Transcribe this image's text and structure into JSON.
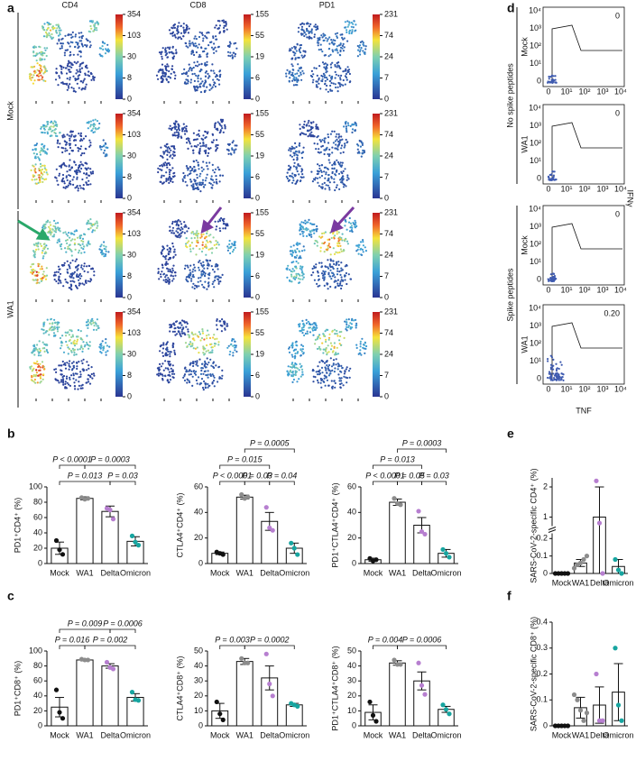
{
  "panels": {
    "a": "a",
    "b": "b",
    "c": "c",
    "d": "d",
    "e": "e",
    "f": "f"
  },
  "tsne": {
    "markers": [
      {
        "name": "CD4",
        "ticks": [
          354,
          103,
          30,
          8,
          0
        ]
      },
      {
        "name": "CD8",
        "ticks": [
          155,
          55,
          19,
          6,
          0
        ]
      },
      {
        "name": "PD1",
        "ticks": [
          231,
          74,
          24,
          7,
          0
        ]
      }
    ],
    "groups": [
      "Mock",
      "WA1"
    ]
  },
  "flow": {
    "groups": [
      "No spike peptides",
      "Spike peptides"
    ],
    "plots": [
      {
        "label": "Mock",
        "value": "0"
      },
      {
        "label": "WA1",
        "value": "0"
      },
      {
        "label": "Mock",
        "value": "0"
      },
      {
        "label": "WA1",
        "value": "0.20"
      }
    ],
    "ticks": [
      "0",
      "10¹",
      "10²",
      "10³",
      "10⁴"
    ],
    "ylabel": "IFNγ",
    "xlabel": "TNF"
  },
  "point_colors": [
    "#111111",
    "#8c8c8c",
    "#b77fd0",
    "#17a5a0"
  ],
  "charts": [
    {
      "type": "bar",
      "ylabel": "PD1⁺CD4⁺ (%)",
      "categories": [
        "Mock",
        "WA1",
        "Delta",
        "Omicron"
      ],
      "values": [
        20,
        85,
        68,
        29
      ],
      "errors": [
        8,
        2,
        7,
        6
      ],
      "points": [
        [
          30,
          18,
          12
        ],
        [
          86,
          84,
          85
        ],
        [
          72,
          70,
          58
        ],
        [
          36,
          28,
          24
        ]
      ],
      "ylim": [
        0,
        100
      ],
      "yticks": [
        0,
        20,
        40,
        60,
        80,
        100
      ],
      "pvalues": [
        "P < 0.0001",
        "P = 0.0003",
        "P = 0.013",
        "P = 0.03"
      ]
    },
    {
      "type": "bar",
      "ylabel": "CTLA4⁺CD4⁺ (%)",
      "categories": [
        "Mock",
        "WA1",
        "Delta",
        "Omicron"
      ],
      "values": [
        8,
        52,
        33,
        12
      ],
      "errors": [
        1,
        1.5,
        7,
        4
      ],
      "points": [
        [
          9,
          8,
          7
        ],
        [
          54,
          51,
          52
        ],
        [
          44,
          28,
          26
        ],
        [
          16,
          12,
          7
        ]
      ],
      "ylim": [
        0,
        60
      ],
      "yticks": [
        0,
        20,
        40,
        60
      ],
      "pvalues": [
        "P = 0.0005",
        "P = 0.015",
        "P < 0.0001",
        "P = 0.03",
        "P = 0.04"
      ]
    },
    {
      "type": "bar",
      "ylabel": "PD1⁺CTLA4⁺CD4⁺ (%)",
      "categories": [
        "Mock",
        "WA1",
        "Delta",
        "Omicron"
      ],
      "values": [
        3,
        48,
        30,
        8
      ],
      "errors": [
        1.2,
        2.5,
        6,
        3
      ],
      "points": [
        [
          4,
          2,
          3
        ],
        [
          51,
          47,
          46
        ],
        [
          41,
          25,
          23
        ],
        [
          11,
          8,
          5
        ]
      ],
      "ylim": [
        0,
        60
      ],
      "yticks": [
        0,
        20,
        40,
        60
      ],
      "pvalues": [
        "P = 0.0003",
        "P = 0.013",
        "P < 0.0001",
        "P = 0.05",
        "P = 0.03"
      ]
    },
    {
      "type": "bar",
      "ylabel": "PD1⁺CD8⁺ (%)",
      "categories": [
        "Mock",
        "WA1",
        "Delta",
        "Omicron"
      ],
      "values": [
        25,
        88,
        80,
        38
      ],
      "errors": [
        13,
        1,
        3,
        5
      ],
      "points": [
        [
          48,
          18,
          10
        ],
        [
          89,
          88,
          88
        ],
        [
          85,
          78,
          76
        ],
        [
          45,
          35,
          34
        ]
      ],
      "ylim": [
        0,
        100
      ],
      "yticks": [
        0,
        20,
        40,
        60,
        80,
        100
      ],
      "pvalues": [
        "P = 0.009",
        "P = 0.0006",
        "P = 0.016",
        "P = 0.002"
      ]
    },
    {
      "type": "bar",
      "ylabel": "CTLA4⁺CD8⁺ (%)",
      "categories": [
        "Mock",
        "WA1",
        "Delta",
        "Omicron"
      ],
      "values": [
        10,
        43,
        32,
        14
      ],
      "errors": [
        5,
        2,
        8,
        1
      ],
      "points": [
        [
          16,
          8,
          4
        ],
        [
          45,
          42,
          42
        ],
        [
          48,
          28,
          20
        ],
        [
          15,
          14,
          13
        ]
      ],
      "ylim": [
        0,
        50
      ],
      "yticks": [
        0,
        10,
        20,
        30,
        40,
        50
      ],
      "pvalues": [
        "P = 0.003",
        "P = 0.0002"
      ]
    },
    {
      "type": "bar",
      "ylabel": "PD1⁺CTLA4⁺CD8⁺ (%)",
      "categories": [
        "Mock",
        "WA1",
        "Delta",
        "Omicron"
      ],
      "values": [
        9,
        42,
        30,
        11
      ],
      "errors": [
        5,
        1.5,
        6,
        2
      ],
      "points": [
        [
          16,
          7,
          3
        ],
        [
          44,
          41,
          41
        ],
        [
          42,
          27,
          21
        ],
        [
          14,
          11,
          8
        ]
      ],
      "ylim": [
        0,
        50
      ],
      "yticks": [
        0,
        10,
        20,
        30,
        40,
        50
      ],
      "pvalues": [
        "P = 0.004",
        "P = 0.0006"
      ]
    },
    {
      "type": "broken-bar",
      "ylabel": "SARS-CoV-2-specific CD4⁺ (%)",
      "categories": [
        "Mock",
        "WA1",
        "Delta",
        "Omicron"
      ],
      "values": [
        0,
        0.06,
        1.0,
        0.04
      ],
      "errors": [
        0,
        0.02,
        1.0,
        0.04
      ],
      "points": [
        [
          0,
          0,
          0,
          0,
          0
        ],
        [
          0.03,
          0.05,
          0.06,
          0.08,
          0.1
        ],
        [
          2.2,
          0.8,
          0
        ],
        [
          0.08,
          0.02,
          0
        ]
      ],
      "ylim": [
        0,
        2.3
      ],
      "ybreak": [
        0.23,
        0.7
      ],
      "yticks": [
        0,
        0.1,
        0.2,
        1,
        2
      ]
    },
    {
      "type": "bar",
      "ylabel": "SARS-CoV-2-specific CD8⁺ (%)",
      "categories": [
        "Mock",
        "WA1",
        "Delta",
        "Omicron"
      ],
      "values": [
        0,
        0.07,
        0.08,
        0.13
      ],
      "errors": [
        0,
        0.04,
        0.07,
        0.11
      ],
      "points": [
        [
          0,
          0,
          0,
          0,
          0
        ],
        [
          0.12,
          0.1,
          0.06,
          0.02,
          0.05
        ],
        [
          0.2,
          0.02,
          0.02
        ],
        [
          0.3,
          0.08,
          0.02
        ]
      ],
      "ylim": [
        0,
        0.4
      ],
      "yticks": [
        0,
        0.1,
        0.2,
        0.3,
        0.4
      ]
    }
  ]
}
